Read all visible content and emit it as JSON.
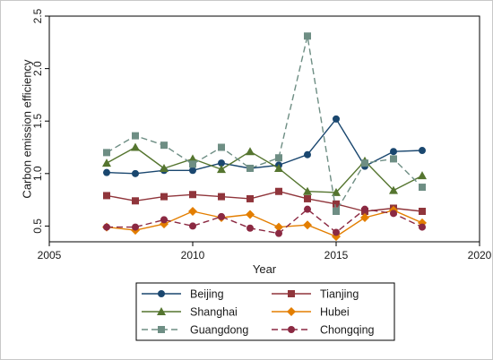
{
  "chart_data": {
    "type": "line",
    "title": "",
    "xlabel": "Year",
    "ylabel": "Carbon emission efficiency",
    "xlim": [
      2005,
      2020
    ],
    "ylim": [
      0.35,
      2.5
    ],
    "xticks": [
      "2005",
      "2010",
      "2015",
      "2020"
    ],
    "yticks": [
      "0.5",
      "1.0",
      "1.5",
      "2.0",
      "2.5"
    ],
    "grid": false,
    "legend": "bottom",
    "x": [
      2007,
      2008,
      2009,
      2010,
      2011,
      2012,
      2013,
      2014,
      2015,
      2016,
      2017,
      2018
    ],
    "series": [
      {
        "name": "Beijing",
        "color": "#1a476f",
        "marker": "circle",
        "dash": "solid",
        "values": [
          1.01,
          1.0,
          1.03,
          1.03,
          1.1,
          1.05,
          1.08,
          1.18,
          1.52,
          1.07,
          1.21,
          1.22
        ]
      },
      {
        "name": "Tianjing",
        "color": "#90353b",
        "marker": "square",
        "dash": "solid",
        "values": [
          0.79,
          0.74,
          0.78,
          0.8,
          0.78,
          0.76,
          0.83,
          0.76,
          0.71,
          0.64,
          0.67,
          0.64
        ]
      },
      {
        "name": "Shanghai",
        "color": "#55752f",
        "marker": "triangle",
        "dash": "solid",
        "values": [
          1.1,
          1.25,
          1.05,
          1.14,
          1.04,
          1.21,
          1.05,
          0.83,
          0.82,
          1.12,
          0.84,
          0.98
        ]
      },
      {
        "name": "Hubei",
        "color": "#e37e00",
        "marker": "diamond",
        "dash": "solid",
        "values": [
          0.49,
          0.46,
          0.52,
          0.64,
          0.58,
          0.61,
          0.49,
          0.51,
          0.4,
          0.58,
          0.65,
          0.53
        ]
      },
      {
        "name": "Guangdong",
        "color": "#6e8e84",
        "marker": "square",
        "dash": "dashed",
        "values": [
          1.2,
          1.36,
          1.27,
          1.09,
          1.25,
          1.05,
          1.15,
          2.31,
          0.64,
          1.1,
          1.14,
          0.87
        ]
      },
      {
        "name": "Chongqing",
        "color": "#8b2942",
        "marker": "circle",
        "dash": "dashed",
        "values": [
          0.49,
          0.49,
          0.56,
          0.5,
          0.59,
          0.48,
          0.43,
          0.66,
          0.44,
          0.66,
          0.62,
          0.49
        ]
      }
    ]
  }
}
